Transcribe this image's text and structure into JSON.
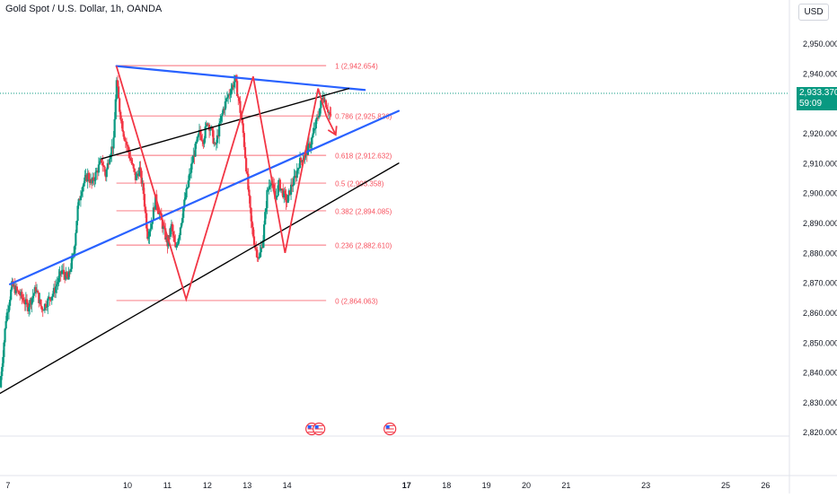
{
  "header": {
    "title": "Gold Spot / U.S. Dollar, 1h, OANDA",
    "currency_button": "USD"
  },
  "price_tag": {
    "price": "2,933.370",
    "countdown": "59:09",
    "value": 2933.37,
    "color": "#089981"
  },
  "chart_data": {
    "type": "candlestick",
    "y_axis": {
      "range": [
        2813,
        2958
      ],
      "ticks": [
        2950,
        2940,
        2930,
        2920,
        2910,
        2900,
        2890,
        2880,
        2870,
        2860,
        2850,
        2840,
        2830,
        2820
      ],
      "tick_labels": [
        "2,950.000",
        "2,940.000",
        "2,930.000",
        "2,920.000",
        "2,910.000",
        "2,900.000",
        "2,890.000",
        "2,880.000",
        "2,870.000",
        "2,860.000",
        "2,850.000",
        "2,840.000",
        "2,830.000",
        "2,820.000"
      ],
      "position": "right"
    },
    "x_axis": {
      "range": [
        6.8,
        26.6
      ],
      "ticks": [
        7,
        10,
        11,
        12,
        13,
        14,
        17,
        18,
        19,
        20,
        21,
        23,
        25,
        26
      ],
      "tick_labels": [
        "7",
        "10",
        "11",
        "12",
        "13",
        "14",
        "17",
        "18",
        "19",
        "20",
        "21",
        "23",
        "25",
        "26"
      ],
      "bold_labels": [
        "17"
      ]
    },
    "grid": false,
    "colors": {
      "up": "#089981",
      "down": "#f23645",
      "fib": "#f7525f",
      "zigzag": "#f23645",
      "blue_lines": "#2962ff",
      "black_lines": "#000000"
    },
    "price_path": [
      [
        6.8,
        2835
      ],
      [
        6.95,
        2858
      ],
      [
        7.1,
        2869
      ],
      [
        7.3,
        2866
      ],
      [
        7.5,
        2862
      ],
      [
        7.7,
        2868
      ],
      [
        7.85,
        2861
      ],
      [
        8.0,
        2864
      ],
      [
        8.15,
        2867
      ],
      [
        8.35,
        2874
      ],
      [
        8.5,
        2871
      ],
      [
        8.65,
        2880
      ],
      [
        8.75,
        2895
      ],
      [
        8.85,
        2902
      ],
      [
        9.0,
        2906
      ],
      [
        9.1,
        2903
      ],
      [
        9.25,
        2908
      ],
      [
        9.35,
        2911
      ],
      [
        9.45,
        2906
      ],
      [
        9.55,
        2913
      ],
      [
        9.65,
        2917
      ],
      [
        9.72,
        2938
      ],
      [
        9.8,
        2928
      ],
      [
        9.9,
        2920
      ],
      [
        10.0,
        2915
      ],
      [
        10.1,
        2910
      ],
      [
        10.2,
        2905
      ],
      [
        10.3,
        2908
      ],
      [
        10.4,
        2900
      ],
      [
        10.5,
        2886
      ],
      [
        10.6,
        2890
      ],
      [
        10.7,
        2898
      ],
      [
        10.8,
        2893
      ],
      [
        10.9,
        2888
      ],
      [
        11.0,
        2883
      ],
      [
        11.1,
        2889
      ],
      [
        11.2,
        2881
      ],
      [
        11.3,
        2887
      ],
      [
        11.4,
        2895
      ],
      [
        11.5,
        2902
      ],
      [
        11.6,
        2909
      ],
      [
        11.7,
        2915
      ],
      [
        11.8,
        2920
      ],
      [
        11.9,
        2918
      ],
      [
        12.0,
        2924
      ],
      [
        12.1,
        2921
      ],
      [
        12.2,
        2915
      ],
      [
        12.3,
        2922
      ],
      [
        12.4,
        2928
      ],
      [
        12.5,
        2932
      ],
      [
        12.6,
        2935
      ],
      [
        12.7,
        2938
      ],
      [
        12.8,
        2930
      ],
      [
        12.9,
        2920
      ],
      [
        13.0,
        2905
      ],
      [
        13.1,
        2890
      ],
      [
        13.2,
        2882
      ],
      [
        13.3,
        2878
      ],
      [
        13.4,
        2885
      ],
      [
        13.5,
        2900
      ],
      [
        13.6,
        2905
      ],
      [
        13.7,
        2898
      ],
      [
        13.8,
        2903
      ],
      [
        13.9,
        2900
      ],
      [
        14.0,
        2897
      ],
      [
        14.1,
        2902
      ],
      [
        14.2,
        2905
      ],
      [
        14.3,
        2910
      ],
      [
        14.4,
        2912
      ],
      [
        14.5,
        2914
      ],
      [
        14.6,
        2917
      ],
      [
        14.7,
        2922
      ],
      [
        14.8,
        2927
      ],
      [
        14.9,
        2933
      ],
      [
        15.0,
        2929
      ],
      [
        15.1,
        2925
      ]
    ],
    "fibonacci": {
      "x_start": 9.72,
      "x_end": 14.98,
      "levels": [
        {
          "ratio": "1",
          "price": 2942.654,
          "label": "1 (2,942.654)"
        },
        {
          "ratio": "0.786",
          "price": 2925.836,
          "label": "0.786 (2,925.836)"
        },
        {
          "ratio": "0.618",
          "price": 2912.632,
          "label": "0.618 (2,912.632)"
        },
        {
          "ratio": "0.5",
          "price": 2903.358,
          "label": "0.5 (2,903.358)"
        },
        {
          "ratio": "0.382",
          "price": 2894.085,
          "label": "0.382 (2,894.085)"
        },
        {
          "ratio": "0.236",
          "price": 2882.61,
          "label": "0.236 (2,882.610)"
        },
        {
          "ratio": "0",
          "price": 2864.063,
          "label": "0 (2,864.063)"
        }
      ]
    },
    "zigzag": [
      [
        9.72,
        2942.5
      ],
      [
        11.47,
        2864.5
      ],
      [
        13.15,
        2939
      ],
      [
        13.95,
        2880
      ],
      [
        14.78,
        2935
      ],
      [
        14.98,
        2926
      ]
    ],
    "arrow": {
      "from": [
        14.98,
        2926
      ],
      "to": [
        15.22,
        2919.5
      ]
    },
    "trendlines": [
      {
        "name": "blue-upper-resistance",
        "color": "#2962ff",
        "width": 2.2,
        "points": [
          [
            9.72,
            2942.5
          ],
          [
            15.95,
            2934.5
          ]
        ]
      },
      {
        "name": "blue-rising-channel",
        "color": "#2962ff",
        "width": 2.2,
        "points": [
          [
            7.05,
            2869.5
          ],
          [
            16.8,
            2927.5
          ]
        ]
      },
      {
        "name": "black-upper-channel",
        "color": "#000000",
        "width": 1.4,
        "points": [
          [
            9.35,
            2911.5
          ],
          [
            15.55,
            2935
          ]
        ]
      },
      {
        "name": "black-lower-support",
        "color": "#000000",
        "width": 1.4,
        "points": [
          [
            6.8,
            2833
          ],
          [
            16.8,
            2910
          ]
        ]
      }
    ],
    "current_price_line": 2933.37,
    "event_icons": [
      14.62,
      14.8,
      16.58
    ]
  }
}
